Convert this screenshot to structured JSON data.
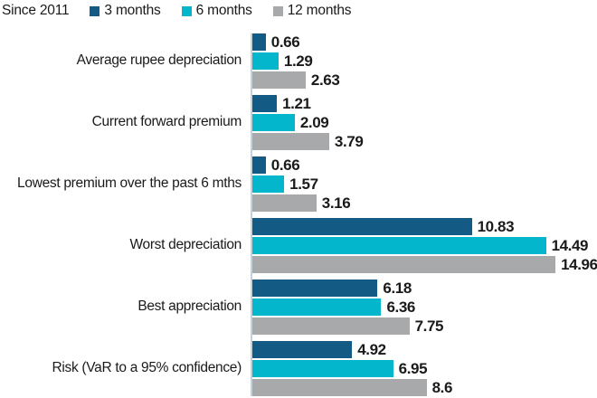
{
  "legend": {
    "title": "Since 2011",
    "items": [
      {
        "label": "3 months",
        "color": "#135b84"
      },
      {
        "label": "6 months",
        "color": "#04b6cc"
      },
      {
        "label": "12 months",
        "color": "#a7a9ab"
      }
    ]
  },
  "chart_data": {
    "type": "bar",
    "orientation": "horizontal",
    "title": "Since 2011",
    "categories": [
      "Average rupee depreciation",
      "Current forward premium",
      "Lowest premium over the past 6 mths",
      "Worst depreciation",
      "Best appreciation",
      "Risk (VaR to a 95% confidence)"
    ],
    "series": [
      {
        "name": "3 months",
        "color": "#135b84",
        "values": [
          0.66,
          1.21,
          0.66,
          10.83,
          6.18,
          4.92
        ]
      },
      {
        "name": "6 months",
        "color": "#04b6cc",
        "values": [
          1.29,
          2.09,
          1.57,
          14.49,
          6.36,
          6.95
        ]
      },
      {
        "name": "12 months",
        "color": "#a7a9ab",
        "values": [
          2.63,
          3.79,
          3.16,
          14.96,
          7.75,
          8.6
        ]
      }
    ],
    "value_labels": true,
    "xlim": [
      0,
      15.4
    ],
    "grid": false,
    "legend_position": "top-left",
    "axis_line_color": "#c1d2da",
    "text_color": "#1a1a1a"
  }
}
